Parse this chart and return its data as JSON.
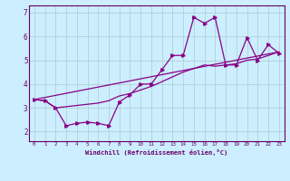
{
  "xlabel": "Windchill (Refroidissement éolien,°C)",
  "background_color": "#cceeff",
  "line_color": "#880088",
  "grid_color": "#aacccc",
  "xlim": [
    -0.5,
    23.5
  ],
  "ylim": [
    1.6,
    7.3
  ],
  "yticks": [
    2,
    3,
    4,
    5,
    6,
    7
  ],
  "xticks": [
    0,
    1,
    2,
    3,
    4,
    5,
    6,
    7,
    8,
    9,
    10,
    11,
    12,
    13,
    14,
    15,
    16,
    17,
    18,
    19,
    20,
    21,
    22,
    23
  ],
  "series1_x": [
    0,
    1,
    2,
    3,
    4,
    5,
    6,
    7,
    8,
    9,
    10,
    11,
    12,
    13,
    14,
    15,
    16,
    17,
    18,
    19,
    20,
    21,
    22,
    23
  ],
  "series1_y": [
    3.35,
    3.3,
    3.0,
    2.25,
    2.35,
    2.4,
    2.35,
    2.25,
    3.25,
    3.55,
    4.0,
    4.0,
    4.6,
    5.2,
    5.2,
    6.8,
    6.55,
    6.8,
    4.8,
    4.8,
    5.95,
    5.0,
    5.65,
    5.3
  ],
  "series2_x": [
    0,
    1,
    2,
    3,
    4,
    5,
    6,
    7,
    8,
    9,
    10,
    11,
    12,
    13,
    14,
    15,
    16,
    17,
    18,
    19,
    20,
    21,
    22,
    23
  ],
  "series2_y": [
    3.35,
    3.3,
    3.0,
    3.05,
    3.1,
    3.15,
    3.2,
    3.3,
    3.5,
    3.6,
    3.75,
    3.9,
    4.1,
    4.3,
    4.5,
    4.65,
    4.8,
    4.75,
    4.8,
    4.85,
    5.0,
    5.05,
    5.2,
    5.35
  ],
  "series3_x": [
    0,
    23
  ],
  "series3_y": [
    3.35,
    5.35
  ]
}
